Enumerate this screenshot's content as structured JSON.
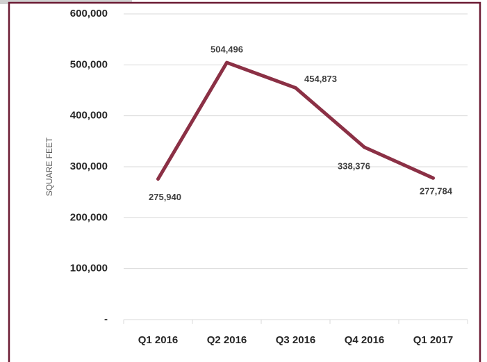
{
  "chart_data": {
    "type": "line",
    "y_label": "SQUARE FEET",
    "categories": [
      "Q1 2016",
      "Q2 2016",
      "Q3 2016",
      "Q4 2016",
      "Q1 2017"
    ],
    "series": [
      {
        "color": "#8b3045",
        "values": [
          275940,
          504496,
          454873,
          338376,
          277784
        ],
        "value_labels": [
          "275,940",
          "504,496",
          "454,873",
          "338,376",
          "277,784"
        ]
      }
    ],
    "ylim": [
      0,
      600000
    ],
    "yticks": [
      {
        "value": 0,
        "label": "-"
      },
      {
        "value": 100000,
        "label": "100,000"
      },
      {
        "value": 200000,
        "label": "200,000"
      },
      {
        "value": 300000,
        "label": "300,000"
      },
      {
        "value": 400000,
        "label": "400,000"
      },
      {
        "value": 500000,
        "label": "500,000"
      },
      {
        "value": 600000,
        "label": "600,000"
      }
    ],
    "grid": true
  }
}
